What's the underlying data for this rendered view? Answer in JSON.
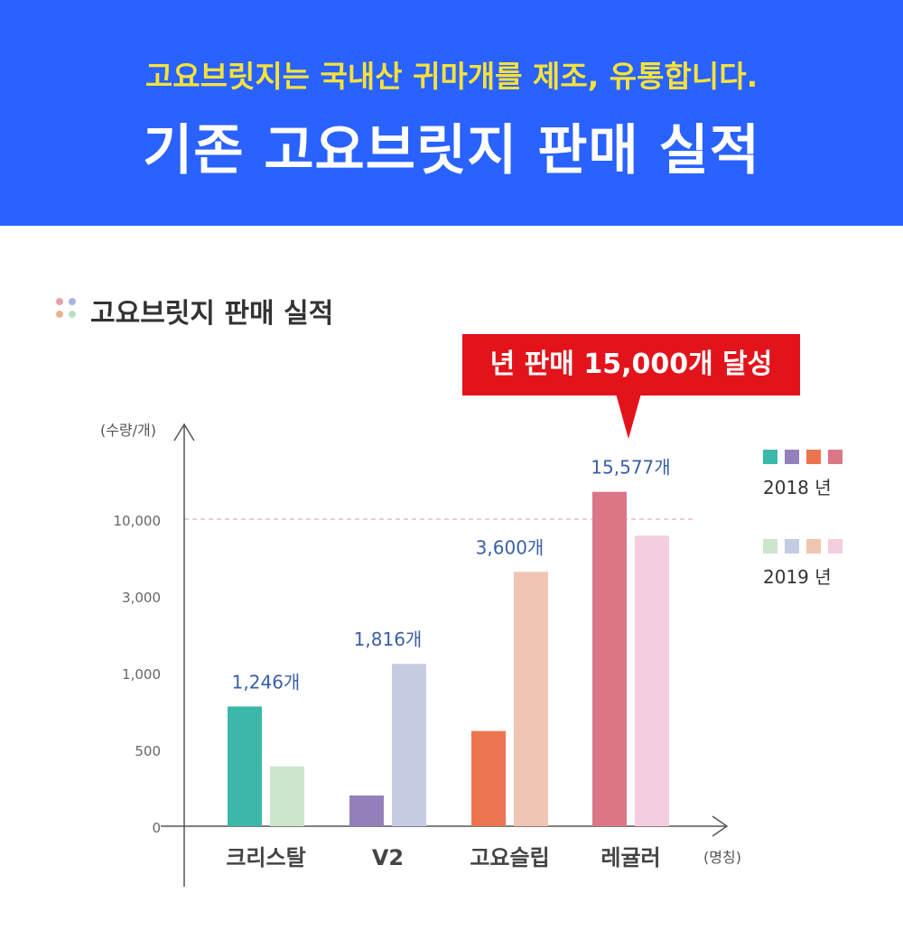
{
  "header": {
    "subtitle": "고요브릿지는 국내산 귀마개를 제조, 유통합니다.",
    "title": "기존 고요브릿지 판매 실적",
    "background": "#2962ff",
    "subtitle_color": "#f7e23a"
  },
  "section": {
    "title": "고요브릿지 판매 실적",
    "dot_colors": [
      "#e8a0b0",
      "#a8b4e0",
      "#f0b090",
      "#b8e0c0"
    ]
  },
  "callout": {
    "text": "년 판매 15,000개 달성",
    "color": "#e3131b"
  },
  "chart_data": {
    "type": "bar",
    "y_unit_label": "(수량/개)",
    "x_unit_label": "(명칭)",
    "y_ticks": [
      "0",
      "500",
      "1,000",
      "3,000",
      "10,000"
    ],
    "y_tick_values": [
      0,
      500,
      1000,
      3000,
      10000
    ],
    "axis_scale": "non-linear (evenly spaced ticks)",
    "reference_line": 10000,
    "grid": false,
    "legend_position": "right",
    "categories": [
      "크리스탈",
      "V2",
      "고요슬립",
      "레귤러"
    ],
    "series": [
      {
        "name": "2018 년",
        "values": [
          780,
          200,
          620,
          12500
        ],
        "colors": [
          "#3bb8aa",
          "#9481bb",
          "#ec754f",
          "#db7687"
        ]
      },
      {
        "name": "2019 년",
        "values": [
          390,
          1230,
          5200,
          8500
        ],
        "colors": [
          "#cce6cd",
          "#c4cce4",
          "#f0c6b2",
          "#f5cde0"
        ]
      }
    ],
    "data_labels": [
      "1,246개",
      "1,816개",
      "3,600개",
      "15,577개"
    ]
  }
}
